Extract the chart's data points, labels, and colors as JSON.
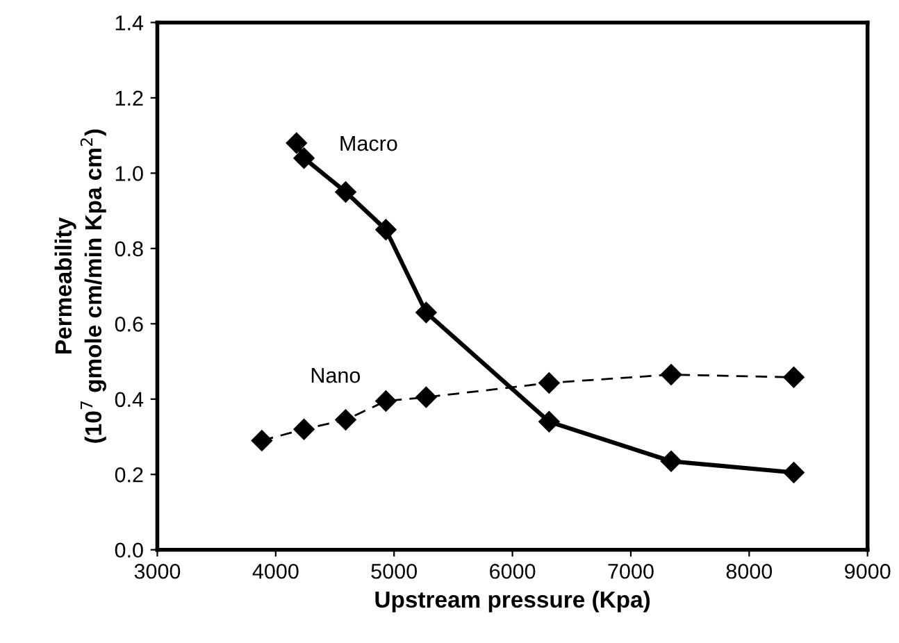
{
  "chart_data": {
    "type": "line",
    "xlabel": "Upstream pressure (Kpa)",
    "ylabel": "Permeability\n(10$^{7}$ gmole cm/min Kpa cm$^{2}$)",
    "marker": "diamond",
    "grid": false,
    "legend": false,
    "xlim": [
      3000,
      9000
    ],
    "xticks": [
      3000,
      4000,
      5000,
      6000,
      7000,
      8000,
      9000
    ],
    "ylim": [
      0,
      1.4
    ],
    "yticks": [
      {
        "value": 0,
        "label": "0.0"
      },
      {
        "value": 0.2,
        "label": "0.2"
      },
      {
        "value": 0.4,
        "label": "0.4"
      },
      {
        "value": 0.6,
        "label": "0.6"
      },
      {
        "value": 0.8,
        "label": "0.8"
      },
      {
        "value": 1.0,
        "label": "1.0"
      },
      {
        "value": 1.2,
        "label": "1.2"
      },
      {
        "value": 1.4,
        "label": "1.4"
      }
    ],
    "series": [
      {
        "name": "Macro",
        "color": "#000000",
        "line_style": "solid",
        "x": [
          4176,
          4239,
          4591,
          4931,
          5271,
          6310,
          7341,
          8377
        ],
        "values": [
          1.08,
          1.04,
          0.95,
          0.85,
          0.63,
          0.34,
          0.235,
          0.205
        ]
      },
      {
        "name": "Nano",
        "color": "#000000",
        "line_style": "dashed",
        "x": [
          3883,
          4239,
          4591,
          4931,
          5271,
          6310,
          7341,
          8377
        ],
        "values": [
          0.29,
          0.32,
          0.345,
          0.395,
          0.405,
          0.443,
          0.465,
          0.458
        ]
      }
    ]
  }
}
